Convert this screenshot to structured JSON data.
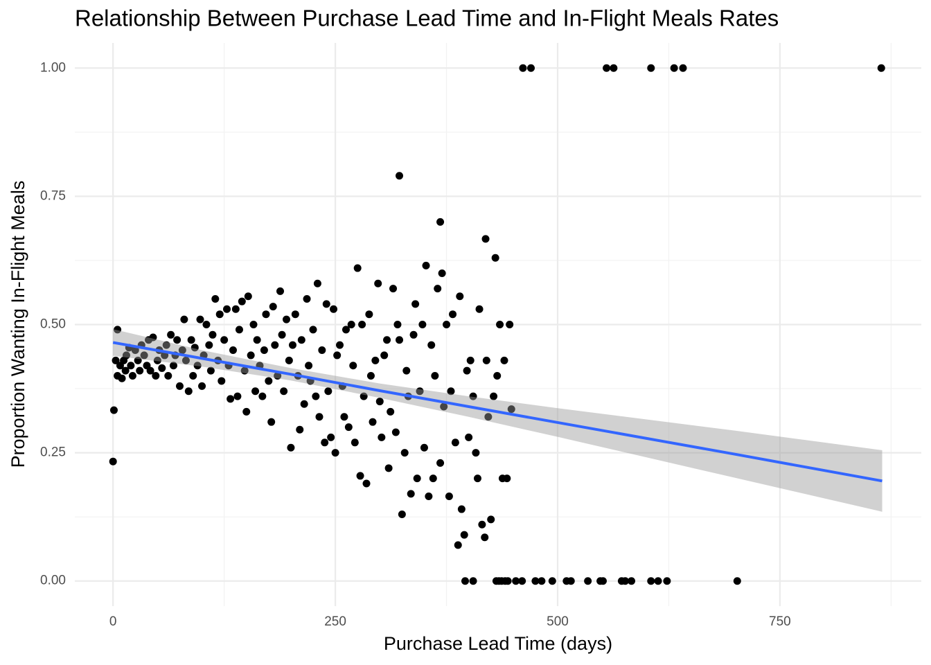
{
  "chart_data": {
    "type": "scatter",
    "title": "Relationship Between Purchase Lead Time and In-Flight Meals Rates",
    "x_label": "Purchase Lead Time (days)",
    "y_label": "Proportion Wanting In-Flight Meals",
    "xlim": [
      -43,
      909
    ],
    "ylim": [
      -0.049,
      1.049
    ],
    "xticks": [
      0,
      250,
      500,
      750
    ],
    "yticks": [
      {
        "value": 0,
        "label": "0.00"
      },
      {
        "value": 0.25,
        "label": "0.25"
      },
      {
        "value": 0.5,
        "label": "0.50"
      },
      {
        "value": 0.75,
        "label": "0.75"
      },
      {
        "value": 1,
        "label": "1.00"
      }
    ],
    "xminorticks": [
      125,
      375,
      625,
      875
    ],
    "yminorticks": [
      0.125,
      0.375,
      0.625,
      0.875
    ],
    "grid": true,
    "color": "#000000",
    "x": [
      0,
      1,
      461,
      470,
      555,
      563,
      605,
      631,
      641,
      864,
      396,
      405,
      431,
      434,
      437,
      441,
      444,
      453,
      460,
      475,
      482,
      494,
      510,
      515,
      534,
      548,
      551,
      572,
      576,
      583,
      605,
      613,
      623,
      702,
      322,
      368,
      419,
      3,
      5,
      5,
      8,
      10,
      12,
      14,
      15,
      18,
      20,
      22,
      25,
      28,
      30,
      32,
      35,
      38,
      40,
      42,
      45,
      48,
      50,
      52,
      55,
      58,
      60,
      62,
      65,
      68,
      70,
      72,
      75,
      78,
      80,
      82,
      85,
      88,
      90,
      92,
      95,
      98,
      100,
      102,
      105,
      108,
      110,
      112,
      115,
      118,
      120,
      122,
      125,
      128,
      130,
      132,
      135,
      138,
      140,
      142,
      145,
      148,
      150,
      152,
      155,
      158,
      160,
      162,
      165,
      168,
      170,
      172,
      175,
      178,
      180,
      182,
      185,
      188,
      190,
      192,
      195,
      198,
      200,
      202,
      205,
      208,
      210,
      212,
      215,
      218,
      220,
      222,
      225,
      228,
      230,
      232,
      235,
      238,
      240,
      242,
      245,
      248,
      250,
      252,
      255,
      258,
      260,
      262,
      265,
      268,
      270,
      272,
      275,
      278,
      280,
      282,
      285,
      288,
      290,
      292,
      295,
      298,
      300,
      302,
      305,
      308,
      310,
      312,
      315,
      318,
      320,
      322,
      325,
      328,
      330,
      332,
      335,
      338,
      340,
      342,
      345,
      348,
      350,
      352,
      355,
      358,
      360,
      362,
      365,
      368,
      370,
      372,
      375,
      378,
      380,
      382,
      385,
      388,
      390,
      392,
      395,
      398,
      400,
      402,
      405,
      408,
      410,
      412,
      415,
      418,
      420,
      422,
      425,
      428,
      430,
      432,
      435,
      438,
      440,
      443,
      446,
      448
    ],
    "values": [
      0.233,
      0.333,
      1,
      1,
      1,
      1,
      1,
      1,
      1,
      1,
      0,
      0,
      0,
      0,
      0,
      0,
      0,
      0,
      0,
      0,
      0,
      0,
      0,
      0,
      0,
      0,
      0,
      0,
      0,
      0,
      0,
      0,
      0,
      0,
      0.79,
      0.7,
      0.667,
      0.43,
      0.49,
      0.4,
      0.42,
      0.395,
      0.43,
      0.41,
      0.44,
      0.455,
      0.42,
      0.4,
      0.45,
      0.43,
      0.41,
      0.46,
      0.44,
      0.42,
      0.47,
      0.41,
      0.475,
      0.4,
      0.43,
      0.45,
      0.415,
      0.44,
      0.46,
      0.4,
      0.48,
      0.42,
      0.44,
      0.47,
      0.38,
      0.45,
      0.51,
      0.43,
      0.37,
      0.47,
      0.4,
      0.455,
      0.42,
      0.51,
      0.38,
      0.44,
      0.5,
      0.46,
      0.41,
      0.48,
      0.55,
      0.43,
      0.52,
      0.39,
      0.47,
      0.53,
      0.42,
      0.355,
      0.45,
      0.53,
      0.36,
      0.49,
      0.545,
      0.41,
      0.33,
      0.555,
      0.44,
      0.5,
      0.37,
      0.47,
      0.42,
      0.36,
      0.45,
      0.52,
      0.39,
      0.31,
      0.535,
      0.46,
      0.4,
      0.565,
      0.48,
      0.37,
      0.51,
      0.43,
      0.26,
      0.46,
      0.52,
      0.4,
      0.295,
      0.47,
      0.345,
      0.55,
      0.42,
      0.39,
      0.49,
      0.36,
      0.58,
      0.32,
      0.45,
      0.27,
      0.54,
      0.37,
      0.28,
      0.53,
      0.25,
      0.44,
      0.46,
      0.38,
      0.32,
      0.49,
      0.3,
      0.5,
      0.42,
      0.27,
      0.61,
      0.205,
      0.5,
      0.36,
      0.19,
      0.52,
      0.4,
      0.31,
      0.43,
      0.58,
      0.35,
      0.28,
      0.44,
      0.47,
      0.22,
      0.33,
      0.57,
      0.29,
      0.5,
      0.47,
      0.13,
      0.25,
      0.41,
      0.36,
      0.17,
      0.48,
      0.54,
      0.2,
      0.37,
      0.5,
      0.26,
      0.615,
      0.165,
      0.46,
      0.2,
      0.4,
      0.57,
      0.23,
      0.6,
      0.34,
      0.5,
      0.165,
      0.37,
      0.52,
      0.27,
      0.07,
      0.555,
      0.14,
      0.09,
      0.41,
      0.28,
      0.43,
      0.36,
      0.25,
      0.2,
      0.53,
      0.11,
      0.085,
      0.43,
      0.32,
      0.12,
      0.36,
      0.63,
      0.4,
      0.5,
      0.2,
      0.43,
      0.2,
      0.5,
      0.335
    ],
    "fit": {
      "color": "#3366FF",
      "band_color": "#999999",
      "x": [
        0,
        100,
        200,
        300,
        400,
        500,
        600,
        700,
        865
      ],
      "values": [
        0.465,
        0.434,
        0.403,
        0.371,
        0.34,
        0.309,
        0.278,
        0.247,
        0.195
      ],
      "lower": [
        0.439,
        0.418,
        0.391,
        0.357,
        0.32,
        0.281,
        0.241,
        0.201,
        0.135
      ],
      "upper": [
        0.491,
        0.45,
        0.415,
        0.385,
        0.36,
        0.337,
        0.315,
        0.293,
        0.255
      ]
    }
  }
}
